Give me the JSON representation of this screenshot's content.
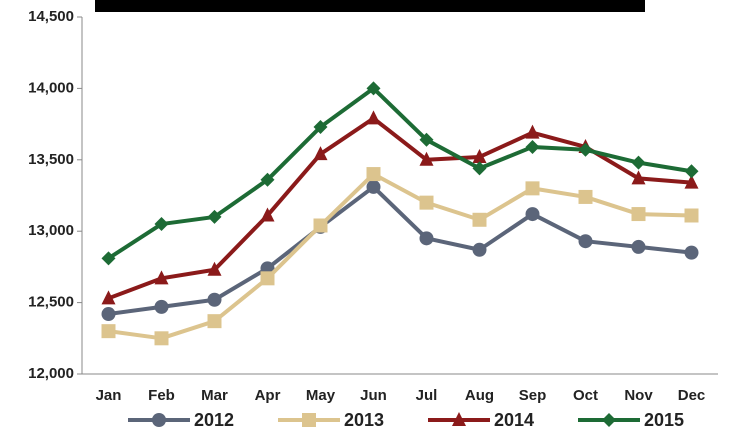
{
  "chart_data": {
    "type": "line",
    "categories": [
      "Jan",
      "Feb",
      "Mar",
      "Apr",
      "May",
      "Jun",
      "Jul",
      "Aug",
      "Sep",
      "Oct",
      "Nov",
      "Dec"
    ],
    "series": [
      {
        "name": "2012",
        "color": "#5b6579",
        "marker": "circle",
        "values": [
          12420,
          12470,
          12520,
          12740,
          13030,
          13310,
          12950,
          12870,
          13120,
          12930,
          12890,
          12850
        ]
      },
      {
        "name": "2013",
        "color": "#dcc48e",
        "marker": "square",
        "values": [
          12300,
          12250,
          12370,
          12670,
          13040,
          13400,
          13200,
          13080,
          13300,
          13240,
          13120,
          13110
        ]
      },
      {
        "name": "2014",
        "color": "#8b1a1a",
        "marker": "triangle",
        "values": [
          12530,
          12670,
          12730,
          13110,
          13540,
          13790,
          13500,
          13520,
          13690,
          13590,
          13370,
          13340
        ]
      },
      {
        "name": "2015",
        "color": "#1d6b35",
        "marker": "diamond",
        "values": [
          12810,
          13050,
          13100,
          13360,
          13730,
          14000,
          13640,
          13440,
          13590,
          13570,
          13480,
          13420
        ]
      }
    ],
    "ylim": [
      12000,
      14500
    ],
    "yticks": [
      {
        "value": 12000,
        "label": "12,000"
      },
      {
        "value": 12500,
        "label": "12,500"
      },
      {
        "value": 13000,
        "label": "13,000"
      },
      {
        "value": 13500,
        "label": "13,500"
      },
      {
        "value": 14000,
        "label": "14,000"
      },
      {
        "value": 14500,
        "label": "14,500"
      }
    ],
    "grid": false
  }
}
